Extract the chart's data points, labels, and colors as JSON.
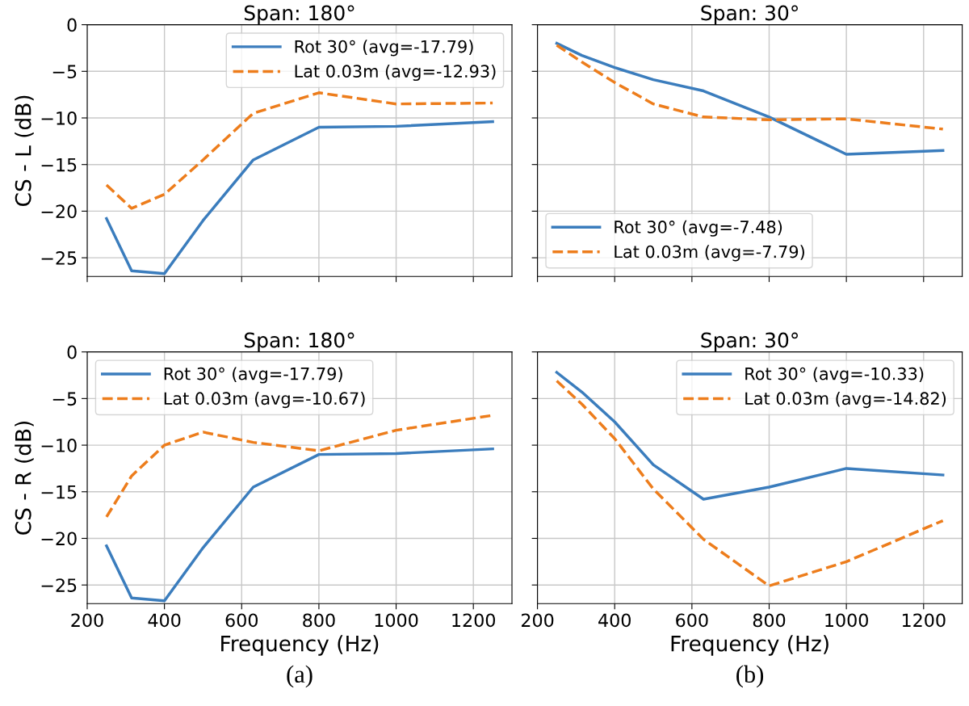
{
  "chart_data": [
    {
      "type": "line",
      "title": "Span: 180°",
      "ylabel": "CS - L (dB)",
      "x": [
        250,
        315,
        400,
        500,
        630,
        800,
        1000,
        1250
      ],
      "xlim": [
        200,
        1300
      ],
      "xticks": [
        200,
        400,
        600,
        800,
        1000,
        1200
      ],
      "ylim": [
        -27,
        0
      ],
      "yticks": [
        {
          "value": -25,
          "label": "−25"
        },
        {
          "value": -20,
          "label": "−20"
        },
        {
          "value": -15,
          "label": "−15"
        },
        {
          "value": -10,
          "label": "−10"
        },
        {
          "value": -5,
          "label": "−5"
        },
        0
      ],
      "grid": true,
      "legend": "top right",
      "tick_labels": "y",
      "series": [
        {
          "name": "Rot 30° (avg=-17.79)",
          "color": "#3b7dbd",
          "line_style": "solid",
          "values": [
            -20.8,
            -26.4,
            -26.7,
            -21.0,
            -14.5,
            -11.0,
            -10.9,
            -10.4
          ]
        },
        {
          "name": "Lat 0.03m (avg=-12.93)",
          "color": "#ed7d1c",
          "line_style": "dashed",
          "values": [
            -17.2,
            -19.7,
            -18.2,
            -14.5,
            -9.5,
            -7.3,
            -8.5,
            -8.4
          ]
        }
      ]
    },
    {
      "type": "line",
      "title": "Span: 30°",
      "x": [
        250,
        315,
        400,
        500,
        630,
        800,
        1000,
        1250
      ],
      "xlim": [
        200,
        1300
      ],
      "xticks": [
        200,
        400,
        600,
        800,
        1000,
        1200
      ],
      "ylim": [
        -27,
        0
      ],
      "yticks": [
        -25,
        -20,
        -15,
        -10,
        -5,
        0
      ],
      "grid": true,
      "legend": "bottom left",
      "tick_labels": false,
      "series": [
        {
          "name": "Rot 30° (avg=-7.48)",
          "color": "#3b7dbd",
          "line_style": "solid",
          "values": [
            -2.0,
            -3.3,
            -4.6,
            -5.9,
            -7.1,
            -9.9,
            -13.9,
            -13.5
          ]
        },
        {
          "name": "Lat 0.03m (avg=-7.79)",
          "color": "#ed7d1c",
          "line_style": "dashed",
          "values": [
            -2.2,
            -4.0,
            -6.2,
            -8.5,
            -9.9,
            -10.2,
            -10.1,
            -11.2
          ]
        }
      ]
    },
    {
      "type": "line",
      "title": "Span: 180°",
      "xlabel": "Frequency (Hz)",
      "ylabel": "CS - R (dB)",
      "annotations": [
        "(a)"
      ],
      "x": [
        250,
        315,
        400,
        500,
        630,
        800,
        1000,
        1250
      ],
      "xlim": [
        200,
        1300
      ],
      "xticks": [
        200,
        400,
        600,
        800,
        1000,
        1200
      ],
      "ylim": [
        -27,
        0
      ],
      "yticks": [
        {
          "value": -25,
          "label": "−25"
        },
        {
          "value": -20,
          "label": "−20"
        },
        {
          "value": -15,
          "label": "−15"
        },
        {
          "value": -10,
          "label": "−10"
        },
        {
          "value": -5,
          "label": "−5"
        },
        0
      ],
      "grid": true,
      "legend": "top left",
      "series": [
        {
          "name": "Rot 30° (avg=-17.79)",
          "color": "#3b7dbd",
          "line_style": "solid",
          "values": [
            -20.8,
            -26.4,
            -26.7,
            -21.0,
            -14.5,
            -11.0,
            -10.9,
            -10.4
          ]
        },
        {
          "name": "Lat 0.03m (avg=-10.67)",
          "color": "#ed7d1c",
          "line_style": "dashed",
          "values": [
            -17.7,
            -13.3,
            -10.0,
            -8.6,
            -9.7,
            -10.6,
            -8.4,
            -6.8
          ]
        }
      ]
    },
    {
      "type": "line",
      "title": "Span: 30°",
      "xlabel": "Frequency (Hz)",
      "annotations": [
        "(b)"
      ],
      "x": [
        250,
        315,
        400,
        500,
        630,
        800,
        1000,
        1250
      ],
      "xlim": [
        200,
        1300
      ],
      "xticks": [
        200,
        400,
        600,
        800,
        1000,
        1200
      ],
      "ylim": [
        -27,
        0
      ],
      "yticks": [
        -25,
        -20,
        -15,
        -10,
        -5,
        0
      ],
      "grid": true,
      "legend": "top right",
      "tick_labels": "x",
      "series": [
        {
          "name": "Rot 30° (avg=-10.33)",
          "color": "#3b7dbd",
          "line_style": "solid",
          "values": [
            -2.2,
            -4.3,
            -7.5,
            -12.1,
            -15.8,
            -14.5,
            -12.5,
            -13.2
          ]
        },
        {
          "name": "Lat 0.03m (avg=-14.82)",
          "color": "#ed7d1c",
          "line_style": "dashed",
          "values": [
            -3.1,
            -5.6,
            -9.3,
            -14.7,
            -20.1,
            -25.1,
            -22.5,
            -18.1
          ]
        }
      ]
    }
  ]
}
